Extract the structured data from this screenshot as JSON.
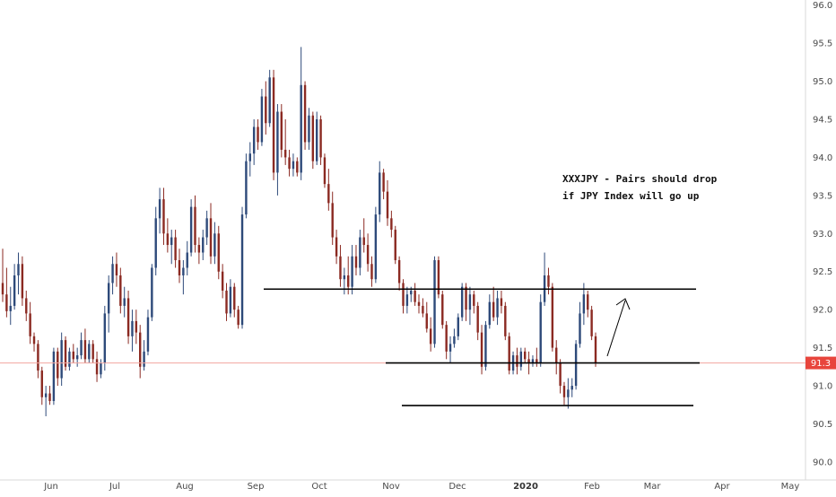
{
  "chart_data": {
    "type": "candlestick",
    "price_axis": {
      "ticks": [
        "90.0",
        "90.5",
        "91.0",
        "91.5",
        "92.0",
        "92.5",
        "93.0",
        "93.5",
        "94.0",
        "94.5",
        "95.0",
        "95.5",
        "96.0"
      ],
      "ylim": [
        89.94,
        96.02
      ]
    },
    "time_axis": {
      "ticks": [
        {
          "label": "Jun",
          "bold": false
        },
        {
          "label": "Jul",
          "bold": false
        },
        {
          "label": "Aug",
          "bold": false
        },
        {
          "label": "Sep",
          "bold": false
        },
        {
          "label": "Oct",
          "bold": false
        },
        {
          "label": "Nov",
          "bold": false
        },
        {
          "label": "Dec",
          "bold": false
        },
        {
          "label": "2020",
          "bold": true
        },
        {
          "label": "Feb",
          "bold": false
        },
        {
          "label": "Mar",
          "bold": false
        },
        {
          "label": "Apr",
          "bold": false
        },
        {
          "label": "May",
          "bold": false
        }
      ]
    },
    "current_price": "91.3",
    "colors": {
      "up": "#2e4a7a",
      "down": "#8b2a22",
      "price_line": "#f3a6a0",
      "price_badge": "#e8453c",
      "lines": "#000000"
    },
    "candles": [
      [
        92.35,
        92.8,
        92.1,
        92.2
      ],
      [
        92.2,
        92.55,
        91.9,
        91.98
      ],
      [
        91.98,
        92.3,
        91.8,
        92.05
      ],
      [
        92.05,
        92.6,
        92.0,
        92.45
      ],
      [
        92.45,
        92.75,
        92.2,
        92.6
      ],
      [
        92.6,
        92.7,
        92.05,
        92.15
      ],
      [
        92.15,
        92.25,
        91.85,
        91.95
      ],
      [
        91.95,
        92.1,
        91.55,
        91.65
      ],
      [
        91.65,
        91.7,
        91.45,
        91.55
      ],
      [
        91.55,
        91.6,
        91.1,
        91.2
      ],
      [
        91.2,
        91.25,
        90.75,
        90.85
      ],
      [
        90.85,
        91.0,
        90.6,
        90.9
      ],
      [
        90.9,
        91.0,
        90.75,
        90.8
      ],
      [
        90.8,
        91.5,
        90.75,
        91.45
      ],
      [
        91.45,
        91.5,
        91.0,
        91.1
      ],
      [
        91.1,
        91.7,
        91.0,
        91.6
      ],
      [
        91.6,
        91.65,
        91.2,
        91.25
      ],
      [
        91.25,
        91.5,
        91.2,
        91.45
      ],
      [
        91.45,
        91.55,
        91.3,
        91.35
      ],
      [
        91.35,
        91.5,
        91.25,
        91.4
      ],
      [
        91.4,
        91.7,
        91.35,
        91.6
      ],
      [
        91.6,
        91.75,
        91.3,
        91.35
      ],
      [
        91.35,
        91.6,
        91.3,
        91.55
      ],
      [
        91.55,
        91.6,
        91.3,
        91.35
      ],
      [
        91.35,
        91.45,
        91.05,
        91.15
      ],
      [
        91.15,
        91.35,
        91.1,
        91.3
      ],
      [
        91.3,
        92.05,
        91.2,
        91.95
      ],
      [
        91.95,
        92.45,
        91.7,
        92.35
      ],
      [
        92.35,
        92.7,
        92.2,
        92.6
      ],
      [
        92.6,
        92.75,
        92.3,
        92.45
      ],
      [
        92.45,
        92.55,
        91.95,
        92.05
      ],
      [
        92.05,
        92.3,
        91.9,
        92.15
      ],
      [
        92.15,
        92.25,
        91.55,
        91.65
      ],
      [
        91.65,
        92.0,
        91.45,
        91.85
      ],
      [
        91.85,
        92.0,
        91.55,
        91.7
      ],
      [
        91.7,
        91.8,
        91.1,
        91.25
      ],
      [
        91.25,
        91.6,
        91.2,
        91.45
      ],
      [
        91.45,
        92.0,
        91.4,
        91.9
      ],
      [
        91.9,
        92.6,
        91.85,
        92.55
      ],
      [
        92.55,
        93.35,
        92.45,
        93.2
      ],
      [
        93.2,
        93.6,
        93.0,
        93.45
      ],
      [
        93.45,
        93.6,
        92.85,
        93.0
      ],
      [
        93.0,
        93.2,
        92.75,
        92.85
      ],
      [
        92.85,
        93.05,
        92.6,
        92.95
      ],
      [
        92.95,
        93.05,
        92.55,
        92.65
      ],
      [
        92.65,
        92.8,
        92.35,
        92.45
      ],
      [
        92.45,
        92.65,
        92.2,
        92.55
      ],
      [
        92.55,
        92.9,
        92.45,
        92.75
      ],
      [
        92.75,
        93.45,
        92.7,
        93.35
      ],
      [
        93.35,
        93.5,
        92.75,
        92.85
      ],
      [
        92.85,
        92.95,
        92.6,
        92.75
      ],
      [
        92.75,
        93.05,
        92.65,
        92.95
      ],
      [
        92.95,
        93.3,
        92.85,
        93.2
      ],
      [
        93.2,
        93.4,
        92.6,
        92.7
      ],
      [
        92.7,
        93.15,
        92.6,
        93.0
      ],
      [
        93.0,
        93.1,
        92.4,
        92.5
      ],
      [
        92.5,
        92.6,
        92.15,
        92.25
      ],
      [
        92.25,
        92.35,
        91.85,
        91.95
      ],
      [
        91.95,
        92.4,
        91.9,
        92.3
      ],
      [
        92.3,
        92.35,
        91.9,
        92.0
      ],
      [
        92.0,
        92.05,
        91.75,
        91.8
      ],
      [
        91.8,
        93.35,
        91.75,
        93.25
      ],
      [
        93.25,
        94.05,
        93.2,
        93.95
      ],
      [
        93.95,
        94.2,
        93.75,
        94.05
      ],
      [
        94.05,
        94.5,
        93.9,
        94.4
      ],
      [
        94.4,
        94.5,
        94.1,
        94.2
      ],
      [
        94.2,
        94.9,
        94.15,
        94.8
      ],
      [
        94.8,
        95.0,
        94.3,
        94.45
      ],
      [
        94.45,
        95.15,
        94.4,
        95.05
      ],
      [
        95.05,
        95.15,
        93.7,
        93.8
      ],
      [
        93.8,
        94.7,
        93.5,
        94.6
      ],
      [
        94.6,
        94.7,
        94.0,
        94.1
      ],
      [
        94.1,
        94.5,
        93.9,
        94.0
      ],
      [
        94.0,
        94.1,
        93.75,
        93.85
      ],
      [
        93.85,
        94.05,
        93.75,
        93.95
      ],
      [
        93.95,
        94.0,
        93.75,
        93.8
      ],
      [
        93.8,
        95.45,
        93.7,
        94.95
      ],
      [
        94.95,
        95.0,
        94.1,
        94.2
      ],
      [
        94.2,
        94.65,
        94.1,
        94.55
      ],
      [
        94.55,
        94.6,
        93.85,
        93.95
      ],
      [
        93.95,
        94.6,
        93.9,
        94.5
      ],
      [
        94.5,
        94.55,
        93.9,
        94.0
      ],
      [
        94.0,
        94.05,
        93.6,
        93.65
      ],
      [
        93.65,
        93.85,
        93.3,
        93.4
      ],
      [
        93.4,
        93.55,
        92.85,
        92.95
      ],
      [
        92.95,
        93.05,
        92.6,
        92.7
      ],
      [
        92.7,
        92.85,
        92.3,
        92.4
      ],
      [
        92.4,
        92.55,
        92.2,
        92.45
      ],
      [
        92.45,
        92.7,
        92.2,
        92.3
      ],
      [
        92.3,
        92.85,
        92.2,
        92.7
      ],
      [
        92.7,
        92.85,
        92.45,
        92.55
      ],
      [
        92.55,
        93.05,
        92.45,
        92.95
      ],
      [
        92.95,
        93.2,
        92.75,
        92.85
      ],
      [
        92.85,
        93.0,
        92.5,
        92.6
      ],
      [
        92.6,
        92.7,
        92.3,
        92.4
      ],
      [
        92.4,
        93.35,
        92.35,
        93.25
      ],
      [
        93.25,
        93.95,
        93.15,
        93.8
      ],
      [
        93.8,
        93.85,
        93.45,
        93.55
      ],
      [
        93.55,
        93.7,
        93.1,
        93.2
      ],
      [
        93.2,
        93.3,
        92.95,
        93.05
      ],
      [
        93.05,
        93.1,
        92.6,
        92.65
      ],
      [
        92.65,
        92.7,
        92.25,
        92.35
      ],
      [
        92.35,
        92.4,
        91.95,
        92.05
      ],
      [
        92.05,
        92.3,
        91.95,
        92.2
      ],
      [
        92.2,
        92.3,
        92.1,
        92.25
      ],
      [
        92.25,
        92.35,
        92.05,
        92.1
      ],
      [
        92.1,
        92.2,
        91.95,
        92.05
      ],
      [
        92.05,
        92.15,
        91.9,
        91.95
      ],
      [
        91.95,
        92.1,
        91.7,
        91.75
      ],
      [
        91.75,
        91.9,
        91.45,
        91.55
      ],
      [
        91.55,
        92.7,
        91.5,
        92.65
      ],
      [
        92.65,
        92.7,
        92.15,
        92.2
      ],
      [
        92.2,
        92.25,
        91.75,
        91.8
      ],
      [
        91.8,
        91.85,
        91.35,
        91.45
      ],
      [
        91.45,
        91.65,
        91.3,
        91.55
      ],
      [
        91.55,
        91.75,
        91.5,
        91.65
      ],
      [
        91.65,
        91.95,
        91.6,
        91.9
      ],
      [
        91.9,
        92.35,
        91.85,
        92.3
      ],
      [
        92.3,
        92.35,
        91.85,
        92.0
      ],
      [
        92.0,
        92.3,
        91.8,
        92.2
      ],
      [
        92.2,
        92.25,
        91.95,
        92.05
      ],
      [
        92.05,
        92.1,
        91.6,
        91.7
      ],
      [
        91.7,
        91.8,
        91.15,
        91.25
      ],
      [
        91.25,
        91.85,
        91.2,
        91.8
      ],
      [
        91.8,
        92.2,
        91.75,
        92.1
      ],
      [
        92.1,
        92.3,
        91.85,
        91.9
      ],
      [
        91.9,
        92.25,
        91.8,
        92.15
      ],
      [
        92.15,
        92.25,
        91.95,
        92.05
      ],
      [
        92.05,
        92.1,
        91.6,
        91.65
      ],
      [
        91.65,
        91.7,
        91.15,
        91.2
      ],
      [
        91.2,
        91.45,
        91.15,
        91.4
      ],
      [
        91.4,
        91.5,
        91.15,
        91.25
      ],
      [
        91.25,
        91.5,
        91.2,
        91.45
      ],
      [
        91.45,
        91.5,
        91.3,
        91.35
      ],
      [
        91.35,
        91.45,
        91.15,
        91.3
      ],
      [
        91.3,
        91.4,
        91.25,
        91.35
      ],
      [
        91.35,
        91.5,
        91.25,
        91.3
      ],
      [
        91.3,
        92.2,
        91.25,
        92.1
      ],
      [
        92.1,
        92.75,
        92.05,
        92.45
      ],
      [
        92.45,
        92.55,
        92.2,
        92.3
      ],
      [
        92.3,
        92.35,
        91.45,
        91.5
      ],
      [
        91.5,
        91.6,
        91.15,
        91.3
      ],
      [
        91.3,
        91.35,
        90.9,
        91.0
      ],
      [
        91.0,
        91.05,
        90.75,
        90.85
      ],
      [
        90.85,
        91.1,
        90.7,
        90.95
      ],
      [
        90.95,
        91.1,
        90.85,
        91.0
      ],
      [
        91.0,
        91.6,
        90.95,
        91.55
      ],
      [
        91.55,
        92.1,
        91.5,
        91.95
      ],
      [
        91.95,
        92.35,
        91.8,
        92.2
      ],
      [
        92.2,
        92.25,
        91.9,
        92.0
      ],
      [
        92.0,
        92.05,
        91.6,
        91.65
      ],
      [
        91.65,
        91.7,
        91.25,
        91.3
      ]
    ],
    "levels": [
      92.27,
      91.3,
      90.74
    ],
    "annotations": [
      "XXXJPY - Pairs should drop",
      "if JPY Index will go up"
    ]
  }
}
